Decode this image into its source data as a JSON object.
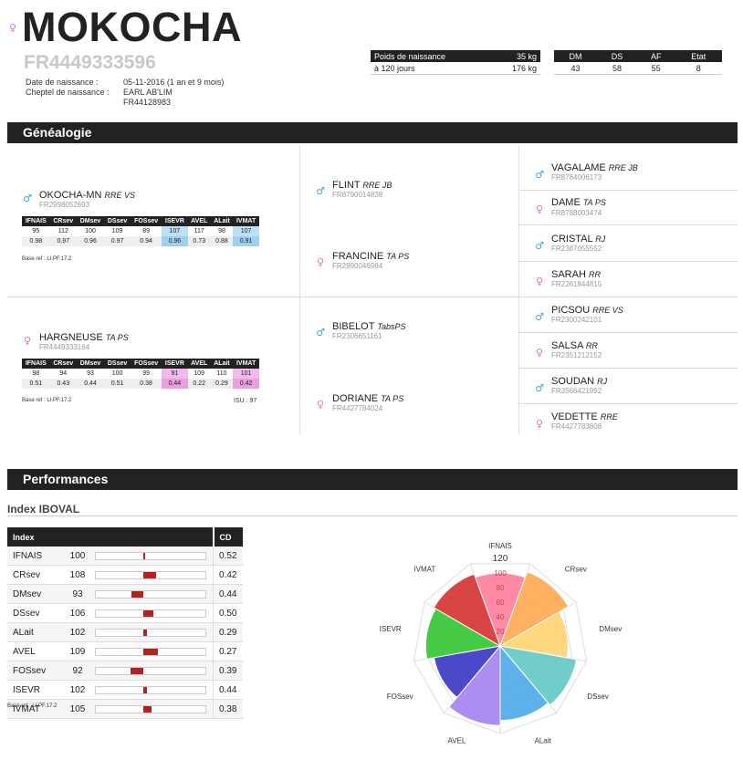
{
  "animal": {
    "name": "MOKOCHA",
    "sex_icon": "female-icon",
    "reg_number": "FR4449333596",
    "birth_label": "Date de naissance :",
    "birth_value": "05-11-2016 (1 an et 9 mois)",
    "herd_label": "Cheptel de naissance :",
    "herd_name": "EARL AB'LIM",
    "herd_number": "FR44128983"
  },
  "weights": {
    "header_label": "Poids de naissance",
    "header_value": "35 kg",
    "row_label": "à 120 jours",
    "row_value": "176 kg"
  },
  "scores": {
    "headers": [
      "DM",
      "DS",
      "AF",
      "Etat"
    ],
    "values": [
      "43",
      "58",
      "55",
      "8"
    ]
  },
  "sections": {
    "genealogy": "Généalogie",
    "performances": "Performances",
    "index_title": "Index IBOVAL"
  },
  "index_headers": [
    "IFNAIS",
    "CRsev",
    "DMsev",
    "DSsev",
    "FOSsev",
    "ISEVR",
    "AVEL",
    "ALait",
    "IVMAT"
  ],
  "parents": {
    "sire": {
      "name": "OKOCHA-MN",
      "breed": "RRE VS",
      "num": "FR2998052693",
      "values": [
        "95",
        "112",
        "100",
        "109",
        "89",
        "107",
        "117",
        "98",
        "107"
      ],
      "cd": [
        "0.98",
        "0.97",
        "0.96",
        "0.97",
        "0.94",
        "0.96",
        "0.73",
        "0.88",
        "0.91"
      ],
      "base_ref": "Base ref : LI.PF.17.2"
    },
    "dam": {
      "name": "HARGNEUSE",
      "breed": "TA PS",
      "num": "FR4449333164",
      "values": [
        "98",
        "94",
        "93",
        "100",
        "99",
        "91",
        "109",
        "110",
        "101"
      ],
      "cd": [
        "0.51",
        "0.43",
        "0.44",
        "0.51",
        "0.38",
        "0.44",
        "0.22",
        "0.29",
        "0.42"
      ],
      "base_ref": "Base ref : LI.PF.17.2",
      "isu": "ISU : 97"
    }
  },
  "grandparents": [
    {
      "name": "FLINT",
      "breed": "RRE JB",
      "num": "FR8790014838"
    },
    {
      "name": "FRANCINE",
      "breed": "TA PS",
      "num": "FR2990046984"
    },
    {
      "name": "BIBELOT",
      "breed": "TabsPS",
      "num": "FR2306651161"
    },
    {
      "name": "DORIANE",
      "breed": "TA PS",
      "num": "FR4427784024"
    }
  ],
  "great_grandparents": [
    {
      "name": "VAGALAME",
      "breed": "RRE JB",
      "num": "FR8784006173"
    },
    {
      "name": "DAME",
      "breed": "TA PS",
      "num": "FR8788003474"
    },
    {
      "name": "CRISTAL",
      "breed": "RJ",
      "num": "FR2387055552"
    },
    {
      "name": "SARAH",
      "breed": "RR",
      "num": "FR2261844815"
    },
    {
      "name": "PICSOU",
      "breed": "RRE VS",
      "num": "FR2300242101"
    },
    {
      "name": "SALSA",
      "breed": "RR",
      "num": "FR2351212152"
    },
    {
      "name": "SOUDAN",
      "breed": "RJ",
      "num": "FR3566421992"
    },
    {
      "name": "VEDETTE",
      "breed": "RRE",
      "num": "FR4427783808"
    }
  ],
  "iboval": {
    "header_index": "Index",
    "header_cd": "CD",
    "rows": [
      {
        "label": "IFNAIS",
        "value": "100",
        "cd": "0.52",
        "num": 100
      },
      {
        "label": "CRsev",
        "value": "108",
        "cd": "0.42",
        "num": 108
      },
      {
        "label": "DMsev",
        "value": "93",
        "cd": "0.44",
        "num": 93
      },
      {
        "label": "DSsev",
        "value": "106",
        "cd": "0.50",
        "num": 106
      },
      {
        "label": "ALait",
        "value": "102",
        "cd": "0.29",
        "num": 102
      },
      {
        "label": "AVEL",
        "value": "109",
        "cd": "0.27",
        "num": 109
      },
      {
        "label": "FOSsev",
        "value": "92",
        "cd": "0.39",
        "num": 92
      },
      {
        "label": "ISEVR",
        "value": "102",
        "cd": "0.44",
        "num": 102
      },
      {
        "label": "IVMAT",
        "value": "105",
        "cd": "0.38",
        "num": 105
      }
    ],
    "base_ref": "Base ref : LI.PF.17.2"
  },
  "chart_data": {
    "type": "polar-area",
    "categories": [
      "IFNAIS",
      "CRsev",
      "DMsev",
      "DSsev",
      "ALait",
      "AVEL",
      "FOSsev",
      "ISEVR",
      "IVMAT"
    ],
    "values": [
      100,
      108,
      93,
      106,
      102,
      109,
      92,
      102,
      105
    ],
    "colors": [
      "#ff7a9a",
      "#ffa54a",
      "#ffd36e",
      "#5cc6c2",
      "#48a7e8",
      "#a07ef0",
      "#3230c2",
      "#2ec42e",
      "#d42a2a"
    ],
    "r_max": 120,
    "r_min": 0,
    "ticks": [
      "20",
      "40",
      "60",
      "80",
      "100",
      "120"
    ]
  }
}
